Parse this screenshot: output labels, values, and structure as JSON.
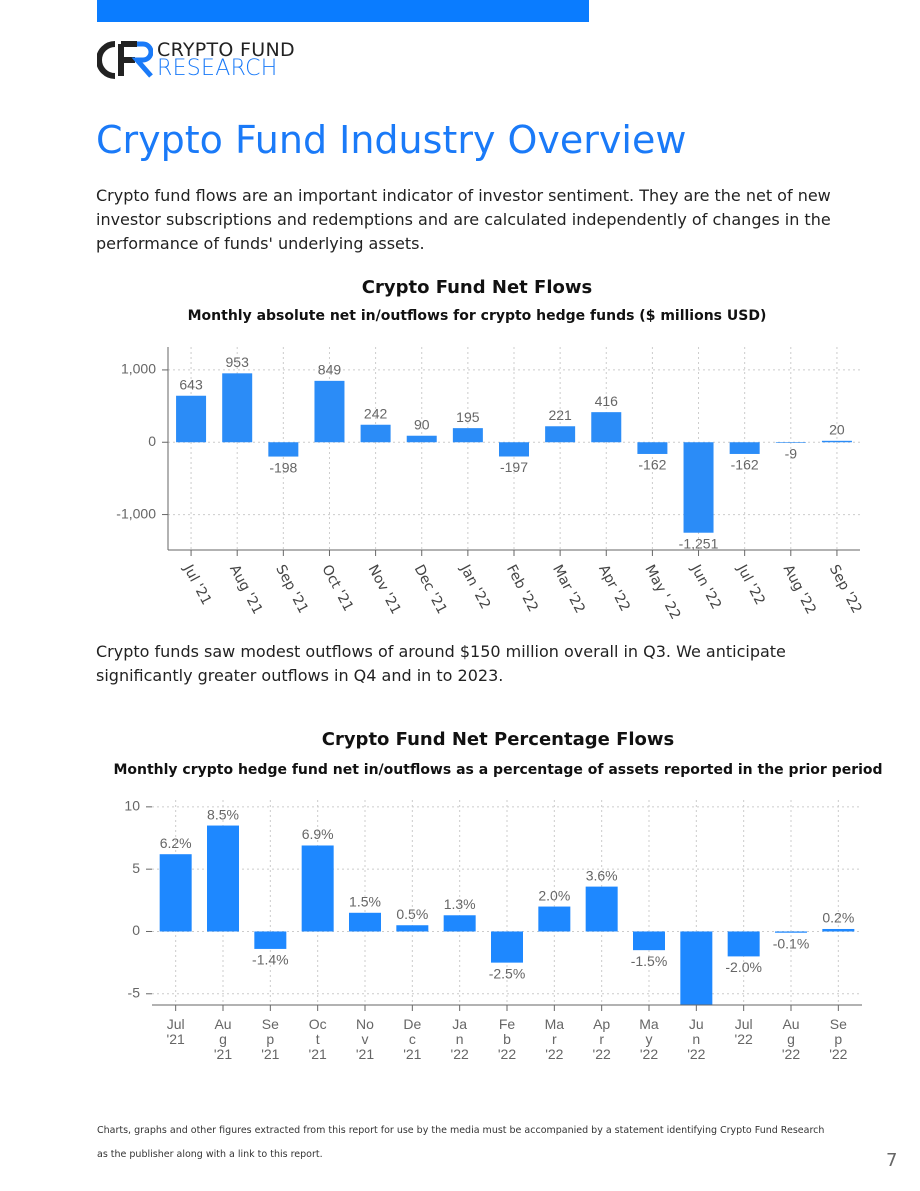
{
  "header": {
    "brand_line1": "CRYPTO FUND",
    "brand_line2": "RESEARCH"
  },
  "title": "Crypto Fund Industry Overview",
  "paragraphs": [
    "Crypto fund flows are an important indicator of investor sentiment. They are the net of new investor subscriptions and redemptions and are calculated independently of changes in the performance of funds' underlying assets.",
    "Crypto funds saw modest outflows of around $150 million overall in Q3. We anticipate significantly greater outflows in Q4 and in to 2023."
  ],
  "chart_data": [
    {
      "type": "bar",
      "title": "Crypto Fund Net Flows",
      "subtitle": "Monthly absolute net in/outflows for crypto hedge funds ($ millions USD)",
      "categories": [
        "Jul '21",
        "Aug '21",
        "Sep '21",
        "Oct '21",
        "Nov '21",
        "Dec '21",
        "Jan '22",
        "Feb '22",
        "Mar '22",
        "Apr '22",
        "May ' 22",
        "Jun '22",
        "Jul '22",
        "Aug '22",
        "Sep '22"
      ],
      "values": [
        643,
        953,
        -198,
        849,
        242,
        90,
        195,
        -197,
        221,
        416,
        -162,
        -1251,
        -162,
        -9,
        20
      ],
      "value_labels": [
        "643",
        "953",
        "-198",
        "849",
        "242",
        "90",
        "195",
        "-197",
        "221",
        "416",
        "-162",
        "-1,251",
        "-162",
        "-9",
        "20"
      ],
      "color": "#2b8cf7",
      "ylim": [
        -1490,
        1317
      ],
      "yticks": [
        {
          "value": -1000,
          "label": "-1,000"
        },
        0,
        {
          "value": 1000,
          "label": "1,000"
        }
      ],
      "grid": true
    },
    {
      "type": "bar",
      "title": "Crypto Fund Net Percentage Flows",
      "subtitle": "Monthly crypto hedge fund net in/outflows as a percentage of assets reported in the prior period",
      "categories": [
        "Jul\n'21",
        "Au\ng\n'21",
        "Se\np\n'21",
        "Oc\nt\n'21",
        "No\nv\n'21",
        "De\nc\n'21",
        "Ja\nn\n'22",
        "Fe\nb\n'22",
        "Ma\nr\n'22",
        "Ap\nr\n'22",
        "Ma\ny\n'22",
        "Ju\nn\n'22",
        "Jul\n'22",
        "Au\ng\n'22",
        "Se\np\n'22"
      ],
      "values": [
        6.2,
        8.5,
        -1.4,
        6.9,
        1.5,
        0.5,
        1.3,
        -2.5,
        2.0,
        3.6,
        -1.5,
        -5.9,
        -2.0,
        -0.1,
        0.2
      ],
      "value_labels": [
        "6.2%",
        "8.5%",
        "-1.4%",
        "6.9%",
        "1.5%",
        "0.5%",
        "1.3%",
        "-2.5%",
        "2.0%",
        "3.6%",
        "-1.5%",
        null,
        "-2.0%",
        "-0.1%",
        "0.2%"
      ],
      "color": "#1e88ff",
      "ylim": [
        -5.9,
        10.55
      ],
      "yticks": [
        -5,
        0,
        5,
        10
      ],
      "grid": true
    }
  ],
  "footer": {
    "note": "Charts, graphs and other figures extracted from this report for use by the media must be accompanied by a statement identifying Crypto Fund Research as the publisher along with a link to this report.",
    "page_number": "7"
  }
}
